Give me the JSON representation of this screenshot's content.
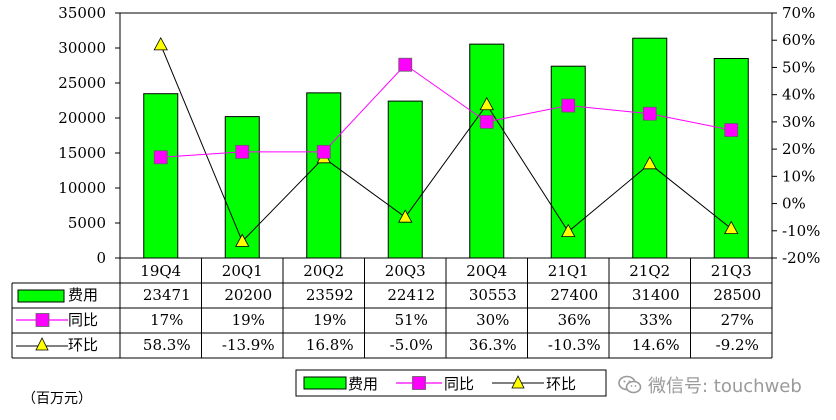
{
  "chart_data": {
    "type": "bar+line",
    "categories": [
      "19Q4",
      "20Q1",
      "20Q2",
      "20Q3",
      "20Q4",
      "21Q1",
      "21Q2",
      "21Q3"
    ],
    "series": [
      {
        "name": "费用",
        "type": "bar",
        "axis": "left",
        "color": "#00ff00",
        "values": [
          23471,
          20200,
          23592,
          22412,
          30553,
          27400,
          31400,
          28500
        ],
        "labels": [
          "23471",
          "20200",
          "23592",
          "22412",
          "30553",
          "27400",
          "31400",
          "28500"
        ]
      },
      {
        "name": "同比",
        "type": "line",
        "axis": "right",
        "color": "#ff00ff",
        "marker": "square",
        "values": [
          17,
          19,
          19,
          51,
          30,
          36,
          33,
          27
        ],
        "labels": [
          "17%",
          "19%",
          "19%",
          "51%",
          "30%",
          "36%",
          "33%",
          "27%"
        ]
      },
      {
        "name": "环比",
        "type": "line",
        "axis": "right",
        "color": "#000000",
        "marker": "triangle",
        "marker_color": "#ffff00",
        "values": [
          58.3,
          -13.9,
          16.8,
          -5.0,
          36.3,
          -10.3,
          14.6,
          -9.2
        ],
        "labels": [
          "58.3%",
          "-13.9%",
          "16.8%",
          "-5.0%",
          "36.3%",
          "-10.3%",
          "14.6%",
          "-9.2%"
        ]
      }
    ],
    "y_left": {
      "lim": [
        0,
        35000
      ],
      "ticks": [
        0,
        5000,
        10000,
        15000,
        20000,
        25000,
        30000,
        35000
      ],
      "tick_labels": [
        "0",
        "5000",
        "10000",
        "15000",
        "20000",
        "25000",
        "30000",
        "35000"
      ]
    },
    "y_right": {
      "lim": [
        -20,
        70
      ],
      "ticks": [
        -20,
        -10,
        0,
        10,
        20,
        30,
        40,
        50,
        60,
        70
      ],
      "tick_labels": [
        "-20%",
        "-10%",
        "0%",
        "10%",
        "20%",
        "30%",
        "40%",
        "50%",
        "60%",
        "70%"
      ]
    },
    "legend": "bottom",
    "grid": false,
    "data_table": true
  },
  "unit_label": "（百万元）",
  "watermark": "微信号: touchweb",
  "colors": {
    "bar": "#00ff00",
    "yoy": "#ff00ff",
    "qoq_line": "#000000",
    "qoq_marker": "#ffff00"
  }
}
